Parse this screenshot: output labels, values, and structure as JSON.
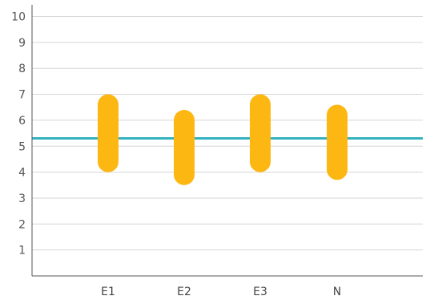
{
  "chart_data": {
    "type": "range-bar",
    "categories": [
      "E1",
      "E2",
      "E3",
      "N"
    ],
    "ranges": [
      {
        "low": 4.0,
        "high": 7.0
      },
      {
        "low": 3.5,
        "high": 6.4
      },
      {
        "low": 4.0,
        "high": 7.0
      },
      {
        "low": 3.7,
        "high": 6.6
      }
    ],
    "reference_line": 5.3,
    "ylim": [
      0,
      10.5
    ],
    "yticks": [
      "1",
      "2",
      "3",
      "4",
      "5",
      "6",
      "7",
      "8",
      "9",
      "10"
    ],
    "grid": "horizontal",
    "title": "",
    "xlabel": "",
    "ylabel": "",
    "colors": {
      "range": "#FDB713",
      "reference": "#33B3C0",
      "grid": "#D6D6D6",
      "axis": "#555555"
    }
  }
}
